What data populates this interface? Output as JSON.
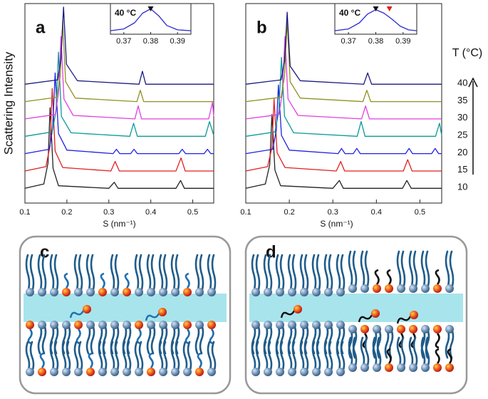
{
  "chart_data": [
    {
      "type": "line",
      "title": "a",
      "xlabel": "S (nm⁻¹)",
      "ylabel": "Scattering Intensity",
      "xlim": [
        0.1,
        0.55
      ],
      "xticks": [
        0.1,
        0.2,
        0.3,
        0.4,
        0.5
      ],
      "ylim": [
        0,
        11.5
      ],
      "series": [
        {
          "color": "#222222",
          "x": [
            0.1,
            0.145,
            0.155,
            0.16,
            0.167,
            0.18,
            0.3,
            0.313,
            0.322,
            0.46,
            0.471,
            0.48,
            0.55
          ],
          "values": [
            0.05,
            0.3,
            1.5,
            4.7,
            1.2,
            0.2,
            0.05,
            0.4,
            0.05,
            0.05,
            0.5,
            0.05,
            0.05
          ]
        },
        {
          "color": "#e02020",
          "x": [
            0.1,
            0.15,
            0.16,
            0.165,
            0.172,
            0.19,
            0.305,
            0.315,
            0.325,
            0.46,
            0.472,
            0.482,
            0.55
          ],
          "values": [
            0.05,
            0.3,
            1.5,
            4.8,
            1.2,
            0.25,
            0.05,
            0.6,
            0.05,
            0.05,
            0.8,
            0.05,
            0.05
          ]
        },
        {
          "color": "#2020e0",
          "x": [
            0.1,
            0.158,
            0.166,
            0.172,
            0.18,
            0.2,
            0.31,
            0.318,
            0.326,
            0.352,
            0.36,
            0.368,
            0.467,
            0.475,
            0.483,
            0.527,
            0.535,
            0.543,
            0.55
          ],
          "values": [
            0.05,
            0.3,
            1.5,
            4.7,
            1.2,
            0.25,
            0.05,
            0.3,
            0.05,
            0.05,
            0.3,
            0.05,
            0.05,
            0.3,
            0.05,
            0.05,
            0.3,
            0.05,
            0.05
          ]
        },
        {
          "color": "#0a9a9a",
          "x": [
            0.1,
            0.165,
            0.174,
            0.18,
            0.187,
            0.21,
            0.35,
            0.359,
            0.368,
            0.53,
            0.54,
            0.55
          ],
          "values": [
            0.05,
            0.3,
            1.5,
            4.9,
            1.2,
            0.25,
            0.05,
            0.8,
            0.05,
            0.05,
            0.9,
            0.1
          ]
        },
        {
          "color": "#e040e0",
          "x": [
            0.1,
            0.172,
            0.18,
            0.186,
            0.193,
            0.215,
            0.362,
            0.37,
            0.378,
            0.538,
            0.547,
            0.55
          ],
          "values": [
            0.05,
            0.3,
            1.5,
            4.8,
            1.2,
            0.25,
            0.05,
            0.8,
            0.05,
            0.05,
            1.0,
            0.2
          ]
        },
        {
          "color": "#909020",
          "x": [
            0.1,
            0.176,
            0.184,
            0.19,
            0.197,
            0.22,
            0.367,
            0.375,
            0.383,
            0.55
          ],
          "values": [
            0.05,
            0.3,
            1.5,
            4.7,
            1.2,
            0.25,
            0.05,
            0.7,
            0.05,
            0.05
          ]
        },
        {
          "color": "#1a1a80",
          "x": [
            0.1,
            0.178,
            0.186,
            0.192,
            0.199,
            0.225,
            0.372,
            0.38,
            0.388,
            0.55
          ],
          "values": [
            0.05,
            0.3,
            1.5,
            4.5,
            1.2,
            0.25,
            0.05,
            0.8,
            0.05,
            0.05
          ]
        }
      ]
    },
    {
      "type": "line",
      "title": "b",
      "xlabel": "S (nm⁻¹)",
      "legend_title": "T (°C)",
      "xlim": [
        0.1,
        0.55
      ],
      "xticks": [
        0.1,
        0.2,
        0.3,
        0.4,
        0.5
      ],
      "ylim": [
        0,
        11.5
      ],
      "series": [
        {
          "name": "10",
          "color": "#222222",
          "x": [
            0.1,
            0.145,
            0.155,
            0.16,
            0.167,
            0.18,
            0.3,
            0.315,
            0.324,
            0.46,
            0.47,
            0.48,
            0.55
          ],
          "values": [
            0.05,
            0.3,
            1.4,
            4.3,
            1.1,
            0.2,
            0.05,
            0.5,
            0.05,
            0.05,
            0.5,
            0.05,
            0.05
          ]
        },
        {
          "name": "15",
          "color": "#e02020",
          "x": [
            0.1,
            0.15,
            0.16,
            0.165,
            0.172,
            0.19,
            0.308,
            0.318,
            0.327,
            0.462,
            0.472,
            0.482,
            0.55
          ],
          "values": [
            0.05,
            0.3,
            1.4,
            4.2,
            1.1,
            0.25,
            0.05,
            0.6,
            0.05,
            0.05,
            0.7,
            0.05,
            0.05
          ]
        },
        {
          "name": "20",
          "color": "#2020e0",
          "x": [
            0.1,
            0.162,
            0.17,
            0.175,
            0.182,
            0.2,
            0.312,
            0.32,
            0.328,
            0.347,
            0.355,
            0.363,
            0.467,
            0.475,
            0.483,
            0.527,
            0.535,
            0.543,
            0.55
          ],
          "values": [
            0.05,
            0.3,
            1.4,
            4.0,
            1.1,
            0.25,
            0.05,
            0.35,
            0.05,
            0.05,
            0.35,
            0.05,
            0.05,
            0.35,
            0.05,
            0.05,
            0.35,
            0.05,
            0.05
          ]
        },
        {
          "name": "25",
          "color": "#0a9a9a",
          "x": [
            0.1,
            0.167,
            0.176,
            0.182,
            0.189,
            0.21,
            0.356,
            0.365,
            0.374,
            0.536,
            0.545,
            0.55
          ],
          "values": [
            0.05,
            0.3,
            1.5,
            4.6,
            1.2,
            0.25,
            0.05,
            0.9,
            0.05,
            0.05,
            0.8,
            0.1
          ]
        },
        {
          "name": "30",
          "color": "#e040e0",
          "x": [
            0.1,
            0.176,
            0.184,
            0.19,
            0.197,
            0.22,
            0.366,
            0.375,
            0.384,
            0.55
          ],
          "values": [
            0.05,
            0.3,
            1.5,
            4.8,
            1.2,
            0.25,
            0.05,
            0.8,
            0.05,
            0.05
          ]
        },
        {
          "name": "35",
          "color": "#909020",
          "x": [
            0.1,
            0.181,
            0.189,
            0.195,
            0.202,
            0.225,
            0.369,
            0.378,
            0.387,
            0.55
          ],
          "values": [
            0.05,
            0.3,
            1.5,
            4.7,
            1.2,
            0.25,
            0.05,
            0.7,
            0.05,
            0.05
          ]
        },
        {
          "name": "40",
          "color": "#1a1a80",
          "x": [
            0.1,
            0.181,
            0.189,
            0.195,
            0.202,
            0.225,
            0.371,
            0.38,
            0.389,
            0.55
          ],
          "values": [
            0.05,
            0.3,
            1.4,
            4.2,
            1.1,
            0.25,
            0.05,
            0.7,
            0.05,
            0.05
          ]
        }
      ]
    },
    {
      "type": "line",
      "title": "40 °C",
      "xlim": [
        0.365,
        0.395
      ],
      "xticks": [
        0.37,
        0.38,
        0.39
      ],
      "ylim": [
        0,
        3.5
      ],
      "markers": [
        {
          "x": 0.38,
          "color": "#111111"
        }
      ],
      "series": [
        {
          "color": "#2a2ad0",
          "x": [
            0.365,
            0.37,
            0.374,
            0.377,
            0.38,
            0.383,
            0.386,
            0.39,
            0.395
          ],
          "values": [
            0.4,
            0.6,
            1.3,
            2.4,
            2.9,
            2.1,
            1.0,
            0.5,
            0.4
          ]
        }
      ]
    },
    {
      "type": "line",
      "title": "40 °C",
      "xlim": [
        0.365,
        0.395
      ],
      "xticks": [
        0.37,
        0.38,
        0.39
      ],
      "ylim": [
        0,
        3.5
      ],
      "markers": [
        {
          "x": 0.38,
          "color": "#111111"
        },
        {
          "x": 0.385,
          "color": "#e02020"
        }
      ],
      "series": [
        {
          "color": "#2a2ad0",
          "x": [
            0.365,
            0.37,
            0.374,
            0.377,
            0.38,
            0.383,
            0.386,
            0.389,
            0.392,
            0.395
          ],
          "values": [
            0.4,
            0.6,
            1.3,
            2.3,
            2.8,
            2.4,
            1.7,
            0.9,
            0.5,
            0.4
          ]
        }
      ]
    }
  ],
  "diagram_labels": [
    "c",
    "d"
  ]
}
